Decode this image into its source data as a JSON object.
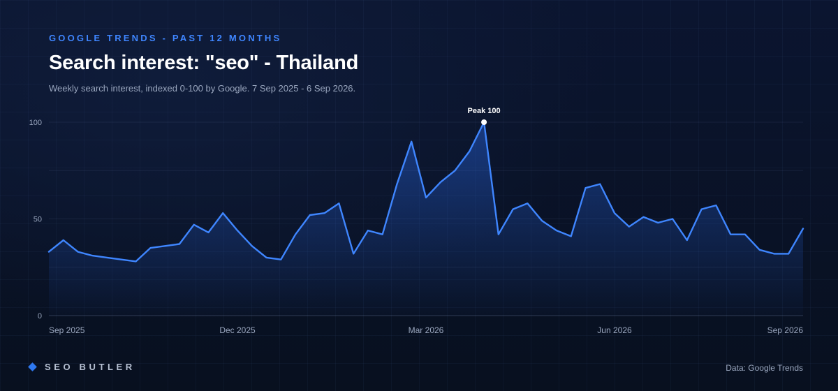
{
  "header": {
    "eyebrow": "GOOGLE TRENDS - PAST 12 MONTHS",
    "title": "Search interest: \"seo\" - Thailand",
    "subtitle": "Weekly search interest, indexed 0-100 by Google. 7 Sep 2025 - 6 Sep 2026."
  },
  "footer": {
    "brand": "SEO BUTLER",
    "source": "Data: Google Trends"
  },
  "colors": {
    "line": "#3f86ff",
    "accent": "#3f86ff",
    "brand_mark": "#2e78f0"
  },
  "chart_data": {
    "type": "area",
    "title": "Search interest: \"seo\" - Thailand",
    "x_start": "2025-09-07",
    "x_end": "2026-09-06",
    "x_ticks": [
      {
        "label": "Sep 2025",
        "index": 0
      },
      {
        "label": "Dec 2025",
        "index": 13
      },
      {
        "label": "Mar 2026",
        "index": 26
      },
      {
        "label": "Jun 2026",
        "index": 39
      },
      {
        "label": "Sep 2026",
        "index": 52
      }
    ],
    "ylim": [
      0,
      100
    ],
    "y_ticks": [
      0,
      50,
      100
    ],
    "grid": true,
    "series": [
      {
        "values": [
          33,
          39,
          33,
          31,
          30,
          29,
          28,
          35,
          36,
          37,
          47,
          43,
          53,
          44,
          36,
          30,
          29,
          42,
          52,
          53,
          58,
          32,
          44,
          42,
          68,
          90,
          61,
          69,
          75,
          85,
          100,
          42,
          55,
          58,
          49,
          44,
          41,
          66,
          68,
          53,
          46,
          51,
          48,
          50,
          39,
          55,
          57,
          42,
          42,
          34,
          32,
          32,
          45
        ]
      }
    ],
    "annotation": {
      "label": "Peak 100",
      "index": 30,
      "value": 100
    }
  }
}
